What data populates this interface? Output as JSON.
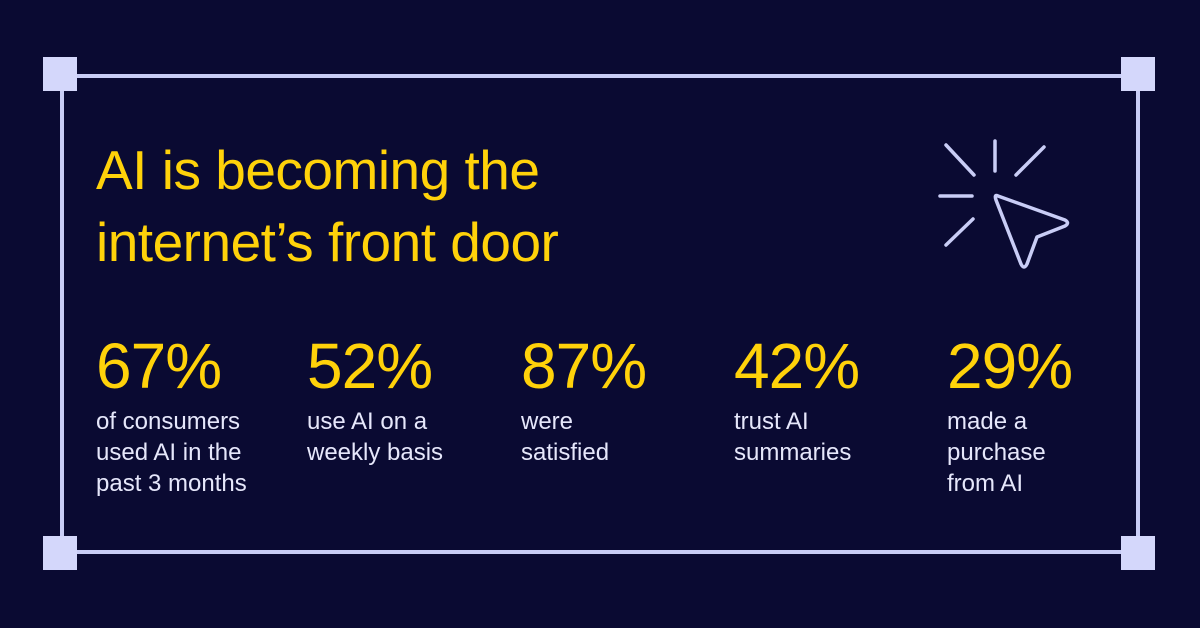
{
  "colors": {
    "background": "#0a0a32",
    "accent": "#ffd20a",
    "frame": "#c9cdf6",
    "text": "#e6e7fb"
  },
  "title": {
    "line1": "AI is becoming the",
    "line2": "internet’s front door"
  },
  "icon": "cursor-click-icon",
  "stats": [
    {
      "value": "67%",
      "label": "of consumers used AI in the past 3 months"
    },
    {
      "value": "52%",
      "label": "use AI on a weekly basis"
    },
    {
      "value": "87%",
      "label": "were satisfied"
    },
    {
      "value": "42%",
      "label": "trust AI summaries"
    },
    {
      "value": "29%",
      "label": "made a purchase from AI"
    }
  ]
}
